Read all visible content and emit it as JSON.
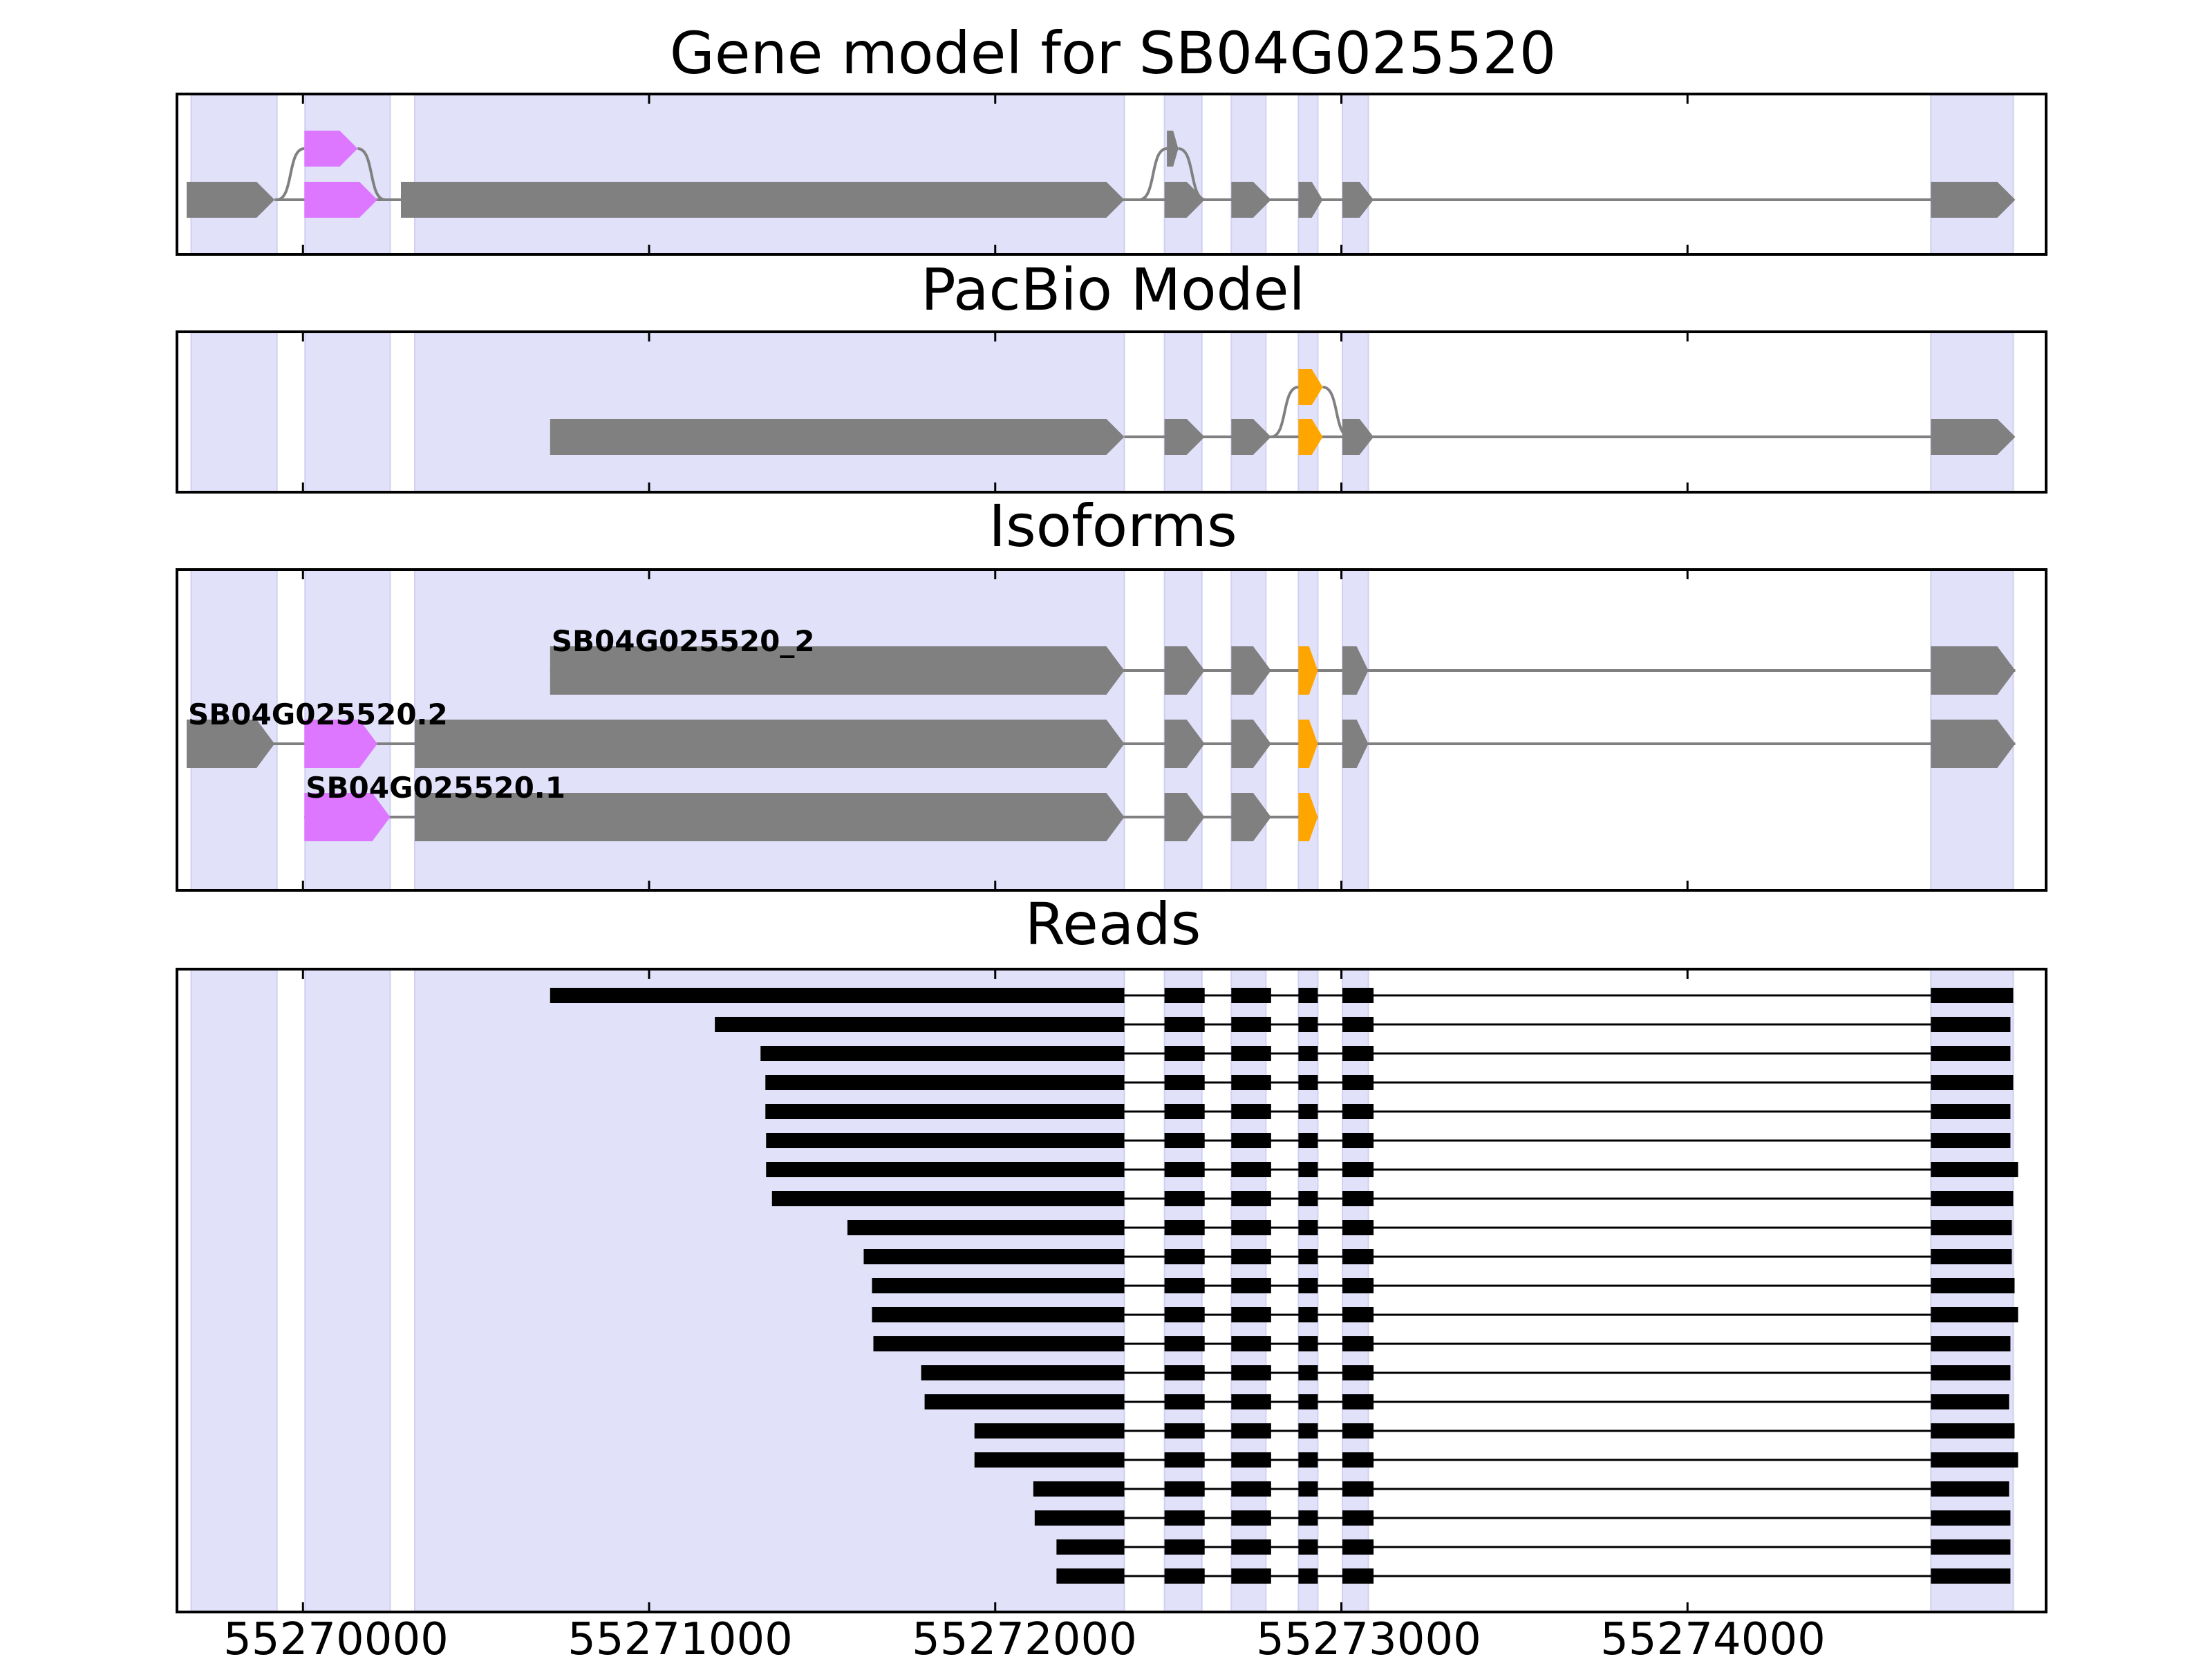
{
  "chart_data": {
    "type": "gene-structure",
    "x_axis": {
      "label": "",
      "range": [
        55269636,
        55275036
      ],
      "ticks": [
        55270000,
        55271000,
        55272000,
        55273000,
        55274000
      ],
      "tick_labels": [
        "55270000",
        "55271000",
        "55272000",
        "55273000",
        "55274000"
      ]
    },
    "colors": {
      "shade": "#e1e1fa",
      "gene": "#808080",
      "magenta": "#dd77ff",
      "orange": "#ffa500",
      "read": "#000000",
      "intron": "#808080"
    },
    "shaded_regions": [
      [
        55269677,
        55269925
      ],
      [
        55270006,
        55270252
      ],
      [
        55270323,
        55272373
      ],
      [
        55272489,
        55272597
      ],
      [
        55272682,
        55272782
      ],
      [
        55272876,
        55272932
      ],
      [
        55273003,
        55273078
      ],
      [
        55274703,
        55274941
      ]
    ],
    "panels": [
      {
        "title": "Gene model for SB04G025520",
        "tracks": [
          {
            "level": 1,
            "color": "gene",
            "exons": [
              [
                55270004,
                55270158,
                "magenta"
              ],
              [
                55272496,
                55272529,
                "gene"
              ]
            ]
          },
          {
            "level": 0,
            "color": "gene",
            "exons": [
              [
                55269664,
                55269918,
                "gene"
              ],
              [
                55270004,
                55270215,
                "magenta"
              ],
              [
                55270283,
                55272373,
                "gene"
              ],
              [
                55272489,
                55272605,
                "gene"
              ],
              [
                55272682,
                55272797,
                "gene"
              ],
              [
                55272876,
                55272946,
                "gene"
              ],
              [
                55273003,
                55273093,
                "gene"
              ],
              [
                55274703,
                55274947,
                "gene"
              ]
            ]
          }
        ]
      },
      {
        "title": "PacBio Model",
        "tracks": [
          {
            "level": 1,
            "color": "gene",
            "exons": [
              [
                55272876,
                55272946,
                "orange"
              ]
            ]
          },
          {
            "level": 0,
            "color": "gene",
            "exons": [
              [
                55270714,
                55272373,
                "gene"
              ],
              [
                55272489,
                55272605,
                "gene"
              ],
              [
                55272682,
                55272797,
                "gene"
              ],
              [
                55272876,
                55272946,
                "orange"
              ],
              [
                55273003,
                55273093,
                "gene"
              ],
              [
                55274703,
                55274947,
                "gene"
              ]
            ]
          }
        ]
      },
      {
        "title": "Isoforms",
        "isoforms": [
          {
            "name": "SB04G025520_2",
            "exons": [
              [
                55270714,
                55272373,
                "gene"
              ],
              [
                55272489,
                55272605,
                "gene"
              ],
              [
                55272682,
                55272797,
                "gene"
              ],
              [
                55272876,
                55272932,
                "orange"
              ],
              [
                55273003,
                55273078,
                "gene"
              ],
              [
                55274703,
                55274947,
                "gene"
              ]
            ]
          },
          {
            "name": "SB04G025520.2",
            "exons": [
              [
                55269664,
                55269918,
                "gene"
              ],
              [
                55270004,
                55270215,
                "magenta"
              ],
              [
                55270323,
                55272373,
                "gene"
              ],
              [
                55272489,
                55272605,
                "gene"
              ],
              [
                55272682,
                55272797,
                "gene"
              ],
              [
                55272876,
                55272932,
                "orange"
              ],
              [
                55273003,
                55273078,
                "gene"
              ],
              [
                55274703,
                55274947,
                "gene"
              ]
            ]
          },
          {
            "name": "SB04G025520.1",
            "exons": [
              [
                55270004,
                55270252,
                "magenta"
              ],
              [
                55270323,
                55272373,
                "gene"
              ],
              [
                55272489,
                55272605,
                "gene"
              ],
              [
                55272682,
                55272797,
                "gene"
              ],
              [
                55272876,
                55272932,
                "orange"
              ]
            ]
          }
        ]
      },
      {
        "title": "Reads",
        "read_internal_exons": [
          [
            55272489,
            55272605
          ],
          [
            55272682,
            55272797
          ],
          [
            55272876,
            55272932
          ],
          [
            55273003,
            55273093
          ]
        ],
        "read_last_exon_start": 55274703,
        "reads": [
          [
            55270714,
            55274941
          ],
          [
            55271190,
            55274933
          ],
          [
            55271322,
            55274933
          ],
          [
            55271336,
            55274941
          ],
          [
            55271336,
            55274933
          ],
          [
            55271338,
            55274933
          ],
          [
            55271338,
            55274955
          ],
          [
            55271355,
            55274941
          ],
          [
            55271573,
            55274937
          ],
          [
            55271620,
            55274937
          ],
          [
            55271644,
            55274945
          ],
          [
            55271644,
            55274955
          ],
          [
            55271648,
            55274933
          ],
          [
            55271786,
            55274933
          ],
          [
            55271796,
            55274929
          ],
          [
            55271940,
            55274945
          ],
          [
            55271940,
            55274955
          ],
          [
            55272110,
            55274929
          ],
          [
            55272114,
            55274933
          ],
          [
            55272177,
            55274933
          ],
          [
            55272177,
            55274933
          ]
        ]
      }
    ]
  }
}
